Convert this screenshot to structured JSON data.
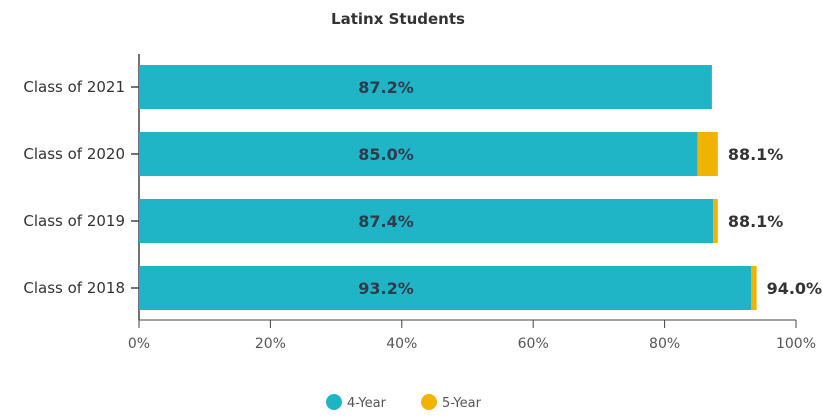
{
  "chart_data": {
    "type": "bar",
    "orientation": "horizontal",
    "stacked": true,
    "title": "Latinx Students",
    "categories": [
      "Class of 2021",
      "Class of 2020",
      "Class of 2019",
      "Class of 2018"
    ],
    "series": [
      {
        "name": "4-Year",
        "color": "#1fb5c7",
        "values": [
          87.2,
          85.0,
          87.4,
          93.2
        ]
      },
      {
        "name": "5-Year",
        "color": "#f0b400",
        "values": [
          null,
          3.1,
          0.7,
          0.8
        ]
      }
    ],
    "inner_labels": [
      "87.2%",
      "85.0%",
      "87.4%",
      "93.2%"
    ],
    "total_labels": [
      "",
      "88.1%",
      "88.1%",
      "94.0%"
    ],
    "xlim": [
      0,
      100
    ],
    "x_ticks": [
      0,
      20,
      40,
      60,
      80,
      100
    ],
    "x_tick_labels": [
      "0%",
      "20%",
      "40%",
      "60%",
      "80%",
      "100%"
    ],
    "grid": false,
    "legend": {
      "position": "bottom",
      "entries": [
        "4-Year",
        "5-Year"
      ]
    }
  }
}
